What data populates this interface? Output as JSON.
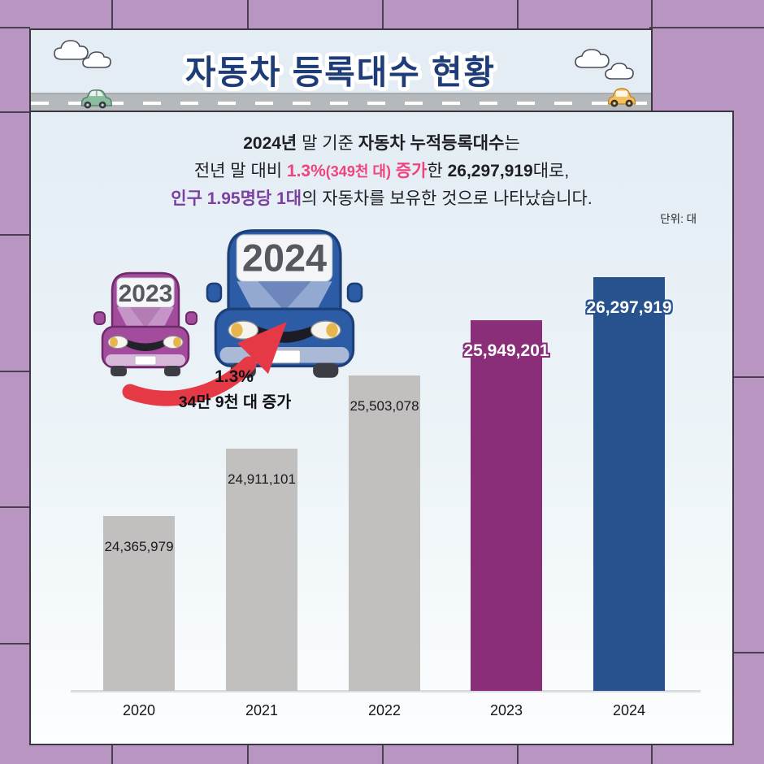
{
  "header": {
    "title": "자동차 등록대수 현황"
  },
  "intro": {
    "line1": [
      {
        "text": "2024년",
        "style": "bold"
      },
      {
        "text": " 말 기준 ",
        "style": ""
      },
      {
        "text": "자동차 누적등록대수",
        "style": "bold"
      },
      {
        "text": "는",
        "style": ""
      }
    ],
    "line2": [
      {
        "text": "전년 말 대비 ",
        "style": ""
      },
      {
        "text": "1.3%",
        "style": "pink"
      },
      {
        "text": "(349천 대)",
        "style": "pink-small"
      },
      {
        "text": " ",
        "style": ""
      },
      {
        "text": "증가",
        "style": "pink"
      },
      {
        "text": "한 ",
        "style": ""
      },
      {
        "text": "26,297,919",
        "style": "bold"
      },
      {
        "text": "대로,",
        "style": ""
      }
    ],
    "line3": [
      {
        "text": "인구 1.95명당 1대",
        "style": "purple"
      },
      {
        "text": "의 자동차를 보유한 것으로 나타났습니다.",
        "style": ""
      }
    ]
  },
  "unit_label": "단위: 대",
  "illustration": {
    "old_car_year": "2023",
    "new_car_year": "2024",
    "growth_pct": "1.3%",
    "growth_caption": "34만 9천 대 증가"
  },
  "chart_data": {
    "type": "bar",
    "categories": [
      "2020",
      "2021",
      "2022",
      "2023",
      "2024"
    ],
    "values": [
      24365979,
      24911101,
      25503078,
      25949201,
      26297919
    ],
    "labels": [
      "24,365,979",
      "24,911,101",
      "25,503,078",
      "25,949,201",
      "26,297,919"
    ],
    "bar_colors": [
      "#c2bfbf",
      "#c2bfbf",
      "#c2bfbf",
      "#8b2e79",
      "#27528e"
    ],
    "label_styles": [
      "dark",
      "dark",
      "dark",
      "outline",
      "outline"
    ],
    "title": "자동차 등록대수 현황",
    "unit": "단위: 대",
    "xlabel": "",
    "ylabel": "",
    "ylim": [
      22950000,
      26500000
    ],
    "grid": false,
    "legend": false
  },
  "colors": {
    "background_purple": "#b996c2",
    "tile_line": "#4a4150",
    "card_blue": "#e3edf4",
    "title_navy": "#1e3c78",
    "accent_pink": "#f0437e",
    "accent_purple": "#7b3fa0",
    "bar_gray": "#c2bfbf",
    "bar_2023": "#8b2e79",
    "bar_2024": "#27528e",
    "arrow_red": "#e63946"
  }
}
